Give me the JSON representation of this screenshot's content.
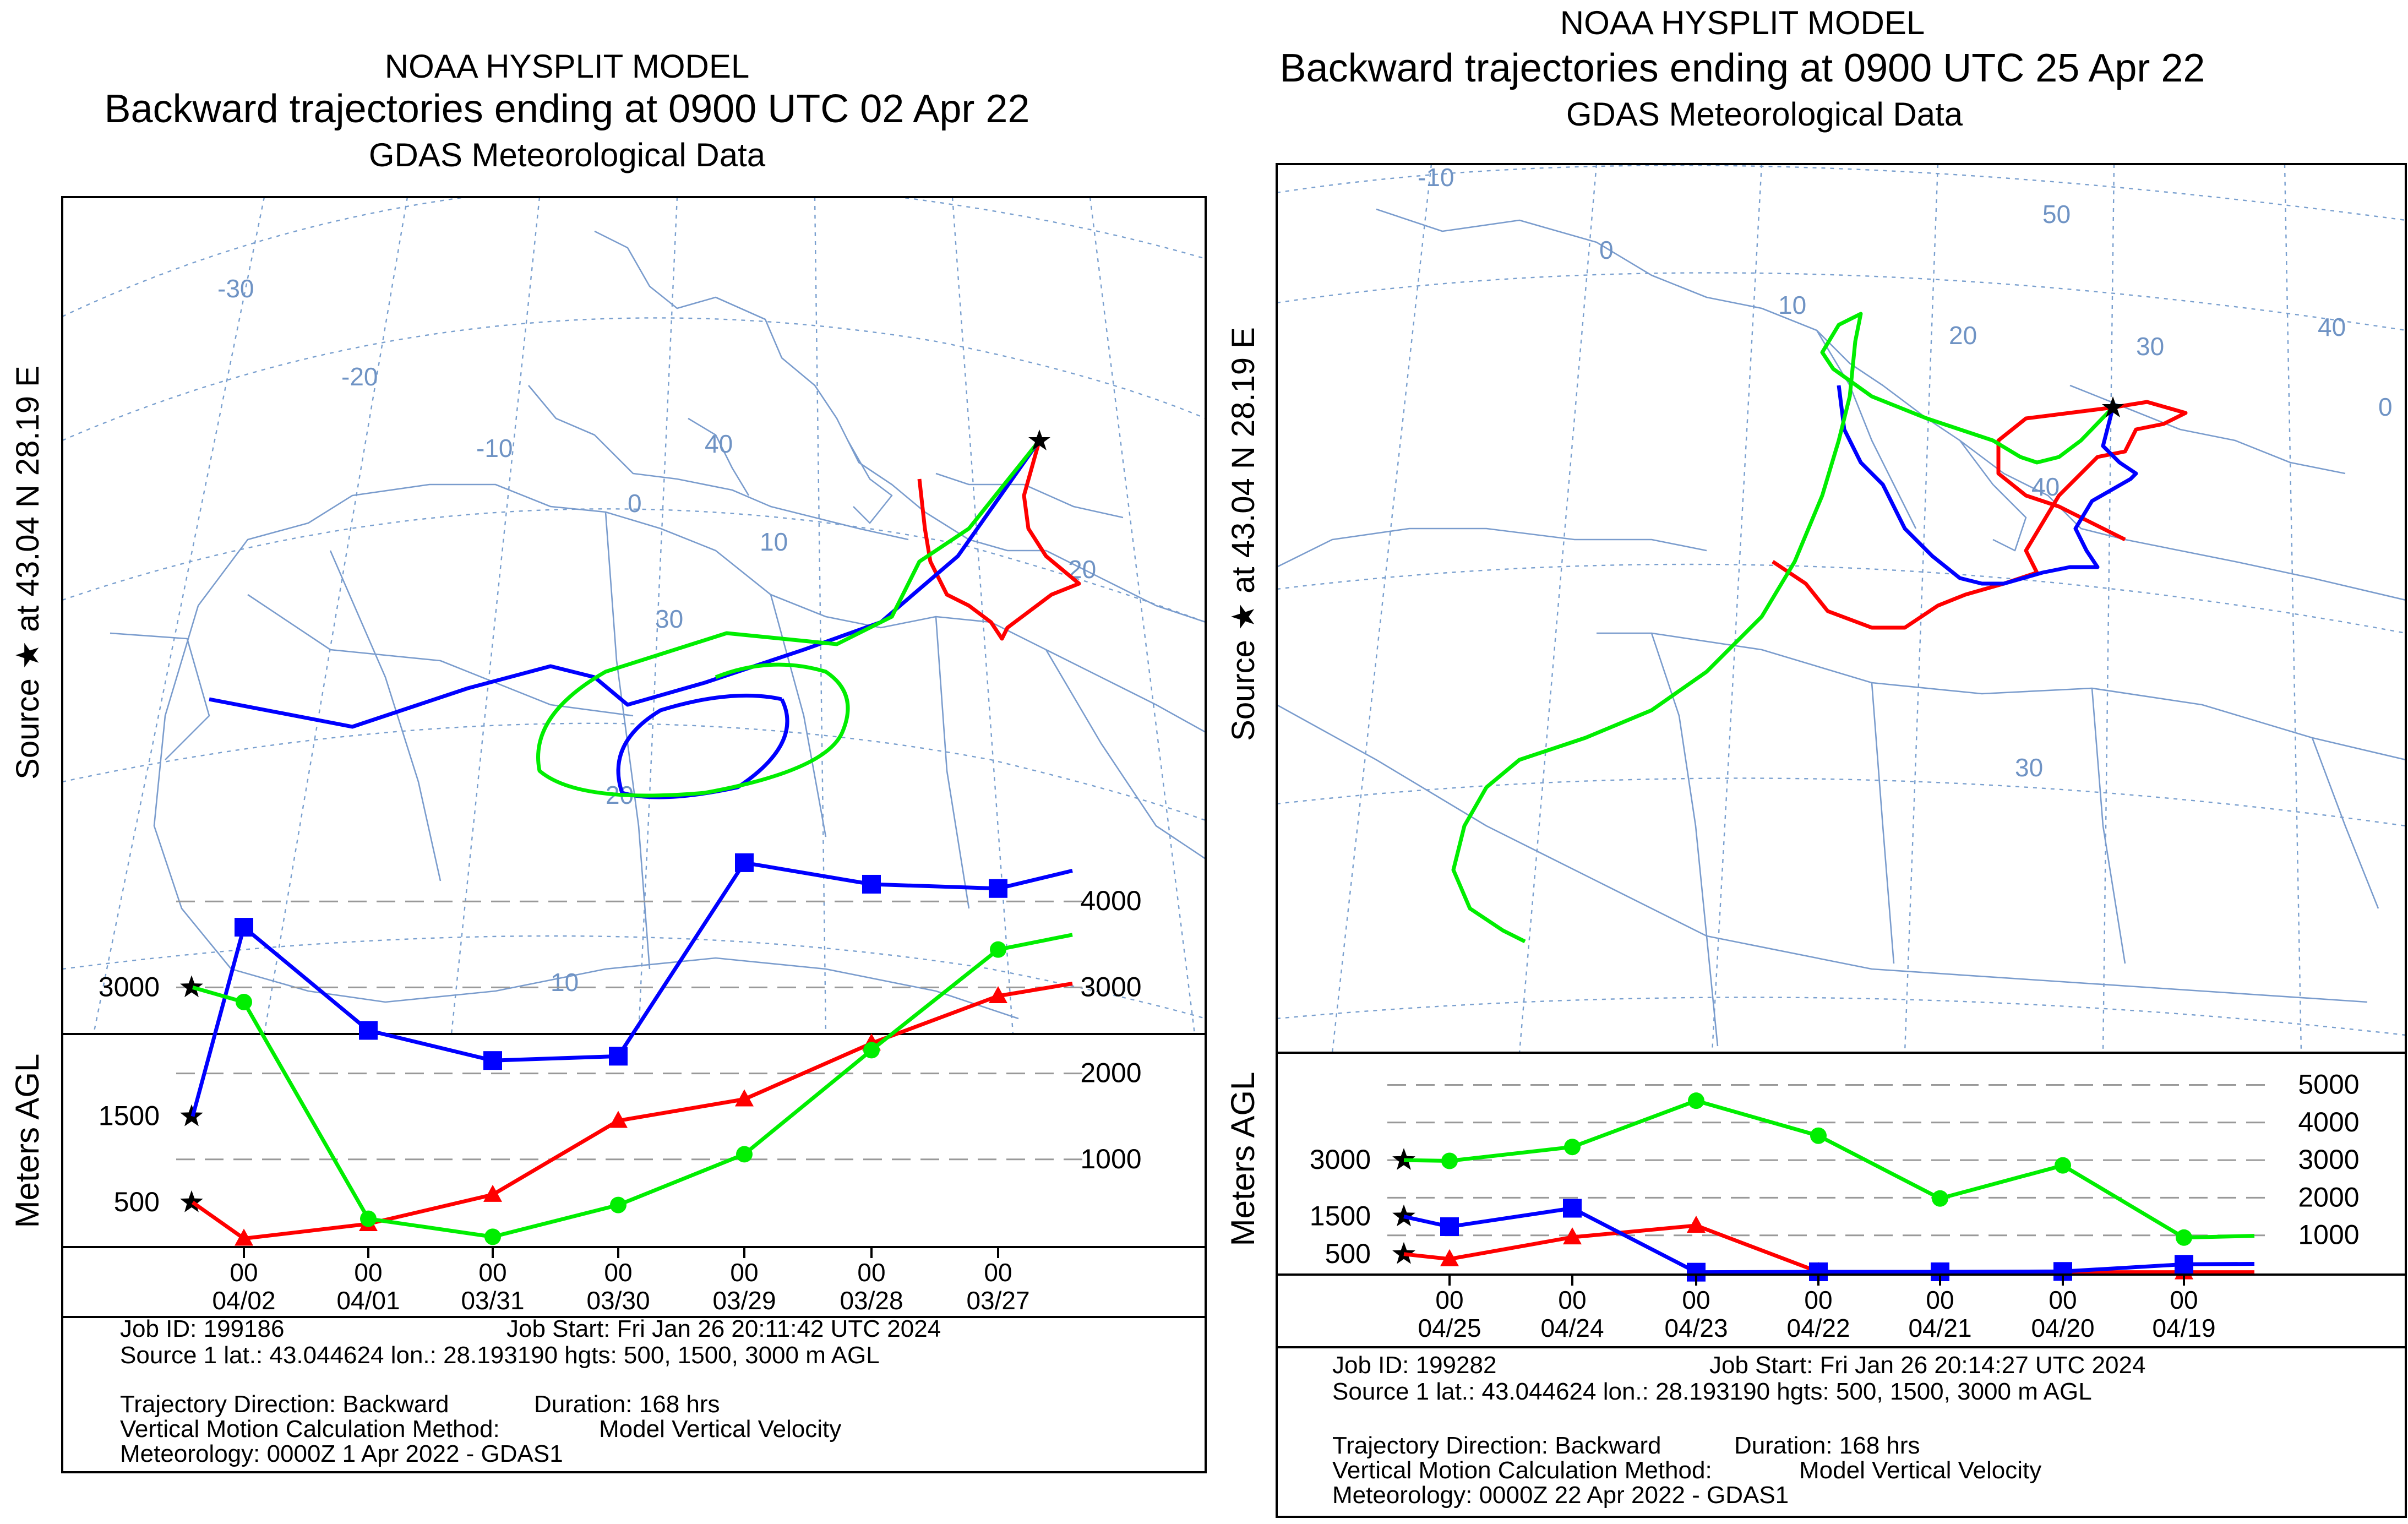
{
  "chart_data": [
    {
      "type": "line",
      "title": "NOAA HYSPLIT MODEL",
      "subtitle": "Backward trajectories ending at 0900 UTC 02 Apr 22",
      "data_source": "GDAS Meteorological Data",
      "side_label": "Source ★ at 43.04 N 28.19 E",
      "map_labels": [
        "-30",
        "-20",
        "-10",
        "0",
        "10",
        "20",
        "40",
        "30",
        "20",
        "10"
      ],
      "ylabel": "Meters AGL",
      "ylim": [
        0,
        5000
      ],
      "y_ticks_right": [
        "4000",
        "3000",
        "2000",
        "1000"
      ],
      "start_labels": [
        "3000",
        "1500",
        "500"
      ],
      "x_tick_top": [
        "00",
        "00",
        "00",
        "00",
        "00",
        "00",
        "00"
      ],
      "x": [
        "04/02",
        "04/01",
        "03/31",
        "03/30",
        "03/29",
        "03/28",
        "03/27"
      ],
      "series": [
        {
          "name": "500 m AGL",
          "color": "#ff0000",
          "marker": "triangle",
          "values": [
            80,
            250,
            590,
            1450,
            1700,
            2350,
            2900
          ]
        },
        {
          "name": "1500 m AGL",
          "color": "#0000ff",
          "marker": "square",
          "values": [
            3700,
            2500,
            2150,
            2200,
            4450,
            4200,
            4150
          ]
        },
        {
          "name": "3000 m AGL",
          "color": "#00ee00",
          "marker": "circle",
          "values": [
            2830,
            310,
            100,
            470,
            1060,
            2270,
            3440
          ]
        }
      ],
      "info": {
        "job_id": "Job ID: 199186",
        "job_start": "Job Start: Fri Jan 26 20:11:42 UTC 2024",
        "source": "Source 1 lat.: 43.044624  lon.: 28.193190  hgts: 500, 1500, 3000 m AGL",
        "direction": "Trajectory Direction: Backward",
        "duration": "Duration: 168 hrs",
        "vertical": "Vertical Motion Calculation Method:",
        "vertical_value": "Model Vertical Velocity",
        "meteorology": "Meteorology: 0000Z 1 Apr 2022 - GDAS1"
      }
    },
    {
      "type": "line",
      "title": "NOAA HYSPLIT MODEL",
      "subtitle": "Backward trajectories ending at 0900 UTC 25 Apr 22",
      "data_source": "GDAS Meteorological Data",
      "side_label": "Source ★ at 43.04 N 28.19 E",
      "map_labels": [
        "-10",
        "0",
        "10",
        "20",
        "30",
        "40",
        "50",
        "40",
        "30",
        "0"
      ],
      "ylabel": "Meters AGL",
      "ylim": [
        0,
        6000
      ],
      "y_ticks_right": [
        "5000",
        "4000",
        "3000",
        "2000",
        "1000"
      ],
      "start_labels": [
        "3000",
        "1500",
        "500"
      ],
      "x_tick_top": [
        "00",
        "00",
        "00",
        "00",
        "00",
        "00",
        "00"
      ],
      "x": [
        "04/25",
        "04/24",
        "04/23",
        "04/22",
        "04/21",
        "04/20",
        "04/19"
      ],
      "series": [
        {
          "name": "500 m AGL",
          "color": "#ff0000",
          "marker": "triangle",
          "values": [
            370,
            950,
            1260,
            30,
            20,
            20,
            20
          ]
        },
        {
          "name": "1500 m AGL",
          "color": "#0000ff",
          "marker": "square",
          "values": [
            1230,
            1720,
            20,
            30,
            30,
            40,
            230
          ]
        },
        {
          "name": "3000 m AGL",
          "color": "#00ee00",
          "marker": "circle",
          "values": [
            2980,
            3350,
            4580,
            3650,
            1980,
            2860,
            940
          ]
        }
      ],
      "info": {
        "job_id": "Job ID: 199282",
        "job_start": "Job Start: Fri Jan 26 20:14:27 UTC 2024",
        "source": "Source 1 lat.: 43.044624  lon.: 28.193190  hgts: 500, 1500, 3000 m AGL",
        "direction": "Trajectory Direction: Backward",
        "duration": "Duration: 168 hrs",
        "vertical": "Vertical Motion Calculation Method:",
        "vertical_value": "Model Vertical Velocity",
        "meteorology": "Meteorology: 0000Z 22 Apr 2022 - GDAS1"
      }
    }
  ]
}
